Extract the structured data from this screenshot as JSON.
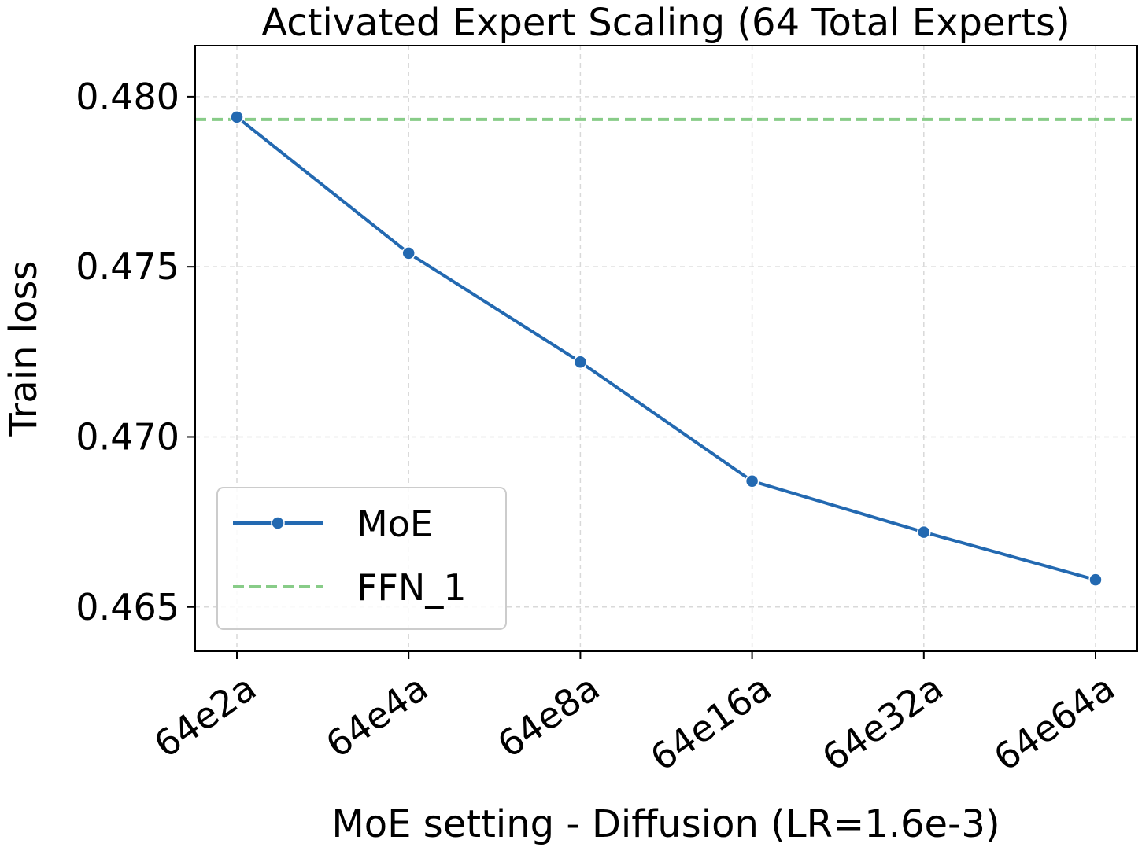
{
  "chart_data": {
    "type": "line",
    "title": "Activated Expert Scaling (64 Total Experts)",
    "xlabel": "MoE setting - Diffusion (LR=1.6e-3)",
    "ylabel": "Train loss",
    "categories": [
      "64e2a",
      "64e4a",
      "64e8a",
      "64e16a",
      "64e32a",
      "64e64a"
    ],
    "ylim": [
      0.4637,
      0.4815
    ],
    "yticks": [
      0.465,
      0.47,
      0.475,
      0.48
    ],
    "ytick_labels": [
      "0.465",
      "0.470",
      "0.475",
      "0.480"
    ],
    "grid": true,
    "legend_position": "lower-left",
    "series": [
      {
        "name": "MoE",
        "values": [
          0.4794,
          0.4754,
          0.4722,
          0.4687,
          0.4672,
          0.4658
        ],
        "color": "#2369b1",
        "style": "solid",
        "marker": "circle"
      }
    ],
    "reference_lines": [
      {
        "name": "FFN_1",
        "value": 0.47933,
        "color": "#88cc88",
        "style": "dashed"
      }
    ]
  }
}
